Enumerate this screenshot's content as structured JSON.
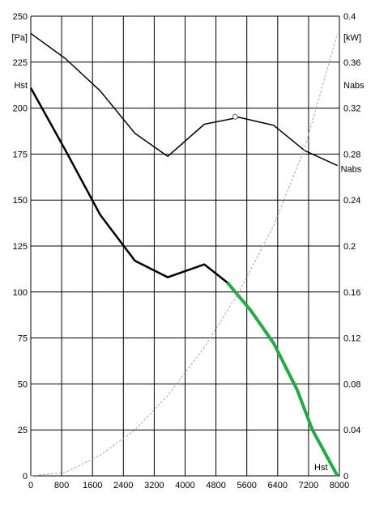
{
  "chart_data": {
    "type": "line",
    "x_ticks": [
      "0",
      "800",
      "1600",
      "2400",
      "3200",
      "4000",
      "4800",
      "5600",
      "6400",
      "7200",
      "8000"
    ],
    "y_left_ticks": [
      "0",
      "25",
      "50",
      "75",
      "100",
      "125",
      "150",
      "175",
      "200",
      "225",
      "250"
    ],
    "y_right_ticks": [
      "0",
      "0.04",
      "0.08",
      "0.12",
      "0.16",
      "0.2",
      "0.24",
      "0.28",
      "0.32",
      "0.36",
      "0.4"
    ],
    "y_left_unit": "[Pa]",
    "y_right_unit": "[kW]",
    "xlim": [
      0,
      8000
    ],
    "ylim_left": [
      0,
      250
    ],
    "ylim_right": [
      0,
      0.4
    ],
    "grid": true,
    "series": [
      {
        "name": "Nabs",
        "axis": "right",
        "color": "#000000",
        "x": [
          0,
          900,
          1800,
          2700,
          3550,
          4500,
          5400,
          6300,
          7100,
          7950
        ],
        "y": [
          0.385,
          0.363,
          0.335,
          0.298,
          0.278,
          0.306,
          0.312,
          0.305,
          0.283,
          0.27
        ]
      },
      {
        "name": "Hst",
        "axis": "left",
        "color": "#000000",
        "x": [
          0,
          900,
          1800,
          2700,
          3550,
          4500,
          5100
        ],
        "y": [
          211,
          177,
          142,
          117,
          108,
          115,
          105
        ]
      },
      {
        "name": "",
        "axis": "left",
        "color": "#22aa44",
        "x": [
          5100,
          5700,
          6300,
          6900,
          7300,
          7950
        ],
        "y": [
          105,
          90,
          72,
          47,
          25,
          0
        ]
      },
      {
        "name": "",
        "axis": "right",
        "color": "#aaaaaa",
        "x": [
          0,
          900,
          1800,
          2700,
          3550,
          4500,
          5400,
          6300,
          7100,
          7950
        ],
        "y": [
          0,
          0.003,
          0.018,
          0.04,
          0.07,
          0.112,
          0.16,
          0.218,
          0.285,
          0.385
        ]
      }
    ],
    "annotations": {
      "hst_left": "Hst",
      "nabs_right": "Nabs",
      "nabs_curve": "Nabs",
      "hst_bottom": "Hst"
    },
    "marker": {
      "series": "Nabs",
      "x": 5300,
      "y": 0.3125
    }
  }
}
